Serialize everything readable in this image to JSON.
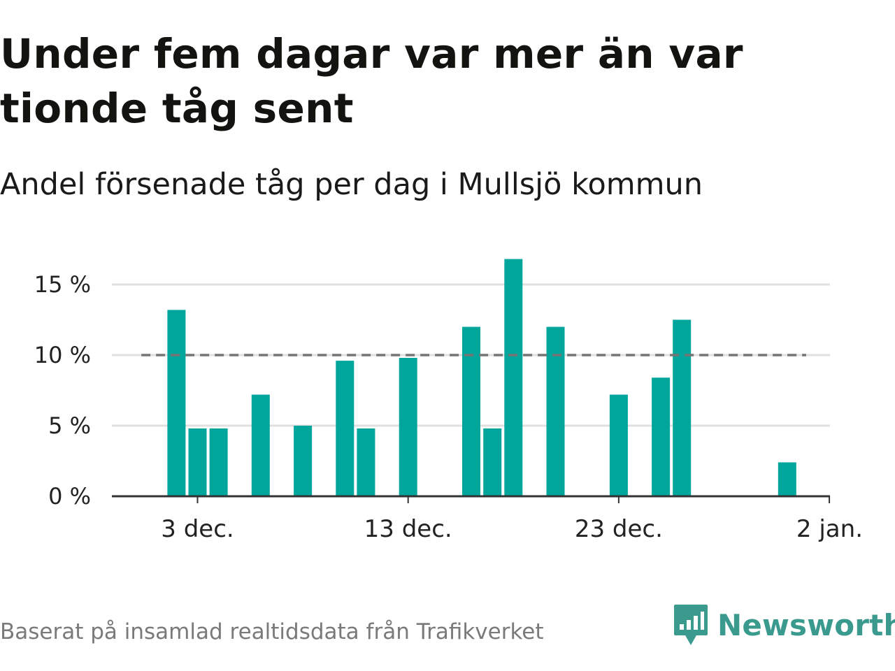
{
  "title": "Under fem dagar var mer än var tionde tåg sent",
  "subtitle": "Andel försenade tåg per dag i Mullsjö kommun",
  "footer": "Baserat på insamlad realtidsdata från Trafikverket",
  "brand": {
    "name": "Newsworthy",
    "icon": "newsworthy-logo-icon",
    "color": "#3a9a8d"
  },
  "colors": {
    "bar": "#00a69c",
    "threshold": "#757575",
    "grid": "#e0e0e0",
    "axis": "#333333"
  },
  "chart_data": {
    "type": "bar",
    "x_unit": "day",
    "x_start": "2023-11-29",
    "x_end": "2024-01-02",
    "ylim": [
      0,
      17
    ],
    "yticks": [
      {
        "value": 0,
        "label": "0 %"
      },
      {
        "value": 5,
        "label": "5 %"
      },
      {
        "value": 10,
        "label": "10 %"
      },
      {
        "value": 15,
        "label": "15 %"
      }
    ],
    "xticks": [
      {
        "date": "2023-12-03",
        "label": "3 dec."
      },
      {
        "date": "2023-12-13",
        "label": "13 dec."
      },
      {
        "date": "2023-12-23",
        "label": "23 dec."
      },
      {
        "date": "2024-01-02",
        "label": "2 jan."
      }
    ],
    "threshold": {
      "value": 10,
      "from": "2023-11-30",
      "to": "2024-01-01",
      "style": "dashed"
    },
    "grid": true,
    "bars": [
      {
        "date": "2023-12-02",
        "value": 13.2
      },
      {
        "date": "2023-12-03",
        "value": 4.8
      },
      {
        "date": "2023-12-04",
        "value": 4.8
      },
      {
        "date": "2023-12-05",
        "value": 0
      },
      {
        "date": "2023-12-06",
        "value": 7.2
      },
      {
        "date": "2023-12-07",
        "value": 0
      },
      {
        "date": "2023-12-08",
        "value": 5.0
      },
      {
        "date": "2023-12-09",
        "value": 0
      },
      {
        "date": "2023-12-10",
        "value": 9.6
      },
      {
        "date": "2023-12-11",
        "value": 4.8
      },
      {
        "date": "2023-12-12",
        "value": 0
      },
      {
        "date": "2023-12-13",
        "value": 9.8
      },
      {
        "date": "2023-12-14",
        "value": 0
      },
      {
        "date": "2023-12-15",
        "value": 0
      },
      {
        "date": "2023-12-16",
        "value": 12.0
      },
      {
        "date": "2023-12-17",
        "value": 4.8
      },
      {
        "date": "2023-12-18",
        "value": 16.8
      },
      {
        "date": "2023-12-19",
        "value": 0
      },
      {
        "date": "2023-12-20",
        "value": 12.0
      },
      {
        "date": "2023-12-21",
        "value": 0
      },
      {
        "date": "2023-12-22",
        "value": 0
      },
      {
        "date": "2023-12-23",
        "value": 7.2
      },
      {
        "date": "2023-12-24",
        "value": 0
      },
      {
        "date": "2023-12-25",
        "value": 8.4
      },
      {
        "date": "2023-12-26",
        "value": 12.5
      },
      {
        "date": "2023-12-27",
        "value": 0
      },
      {
        "date": "2023-12-28",
        "value": 0
      },
      {
        "date": "2023-12-29",
        "value": 0
      },
      {
        "date": "2023-12-30",
        "value": 0
      },
      {
        "date": "2023-12-31",
        "value": 2.4
      }
    ]
  }
}
